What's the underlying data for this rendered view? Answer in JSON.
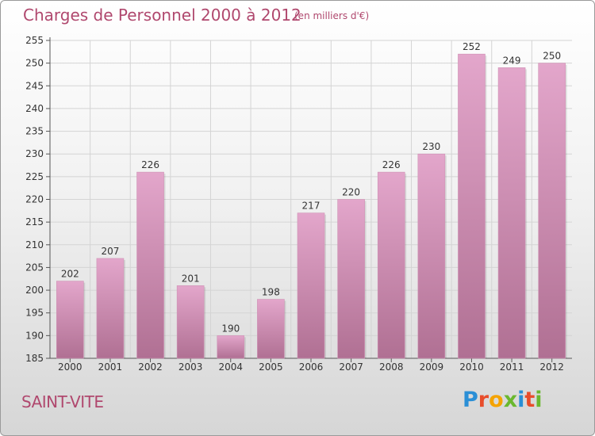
{
  "header": {
    "title": "Charges de Personnel 2000 à 2012",
    "subtitle": "(en milliers d'€)"
  },
  "footer": {
    "town": "SAINT-VITE",
    "logo_text": "Proxiti"
  },
  "colors": {
    "bar_top": "#e3a6cb",
    "bar_bottom": "#b07093",
    "text_accent": "#b0486e",
    "grid": "#d4d4d4",
    "logo_letters": [
      "#2a8fd6",
      "#e84d2b",
      "#f5a300",
      "#6ab82e",
      "#2a8fd6",
      "#e84d2b",
      "#6ab82e"
    ]
  },
  "chart_data": {
    "type": "bar",
    "categories": [
      "2000",
      "2001",
      "2002",
      "2003",
      "2004",
      "2005",
      "2006",
      "2007",
      "2008",
      "2009",
      "2010",
      "2011",
      "2012"
    ],
    "values": [
      202,
      207,
      226,
      201,
      190,
      198,
      217,
      220,
      226,
      230,
      252,
      249,
      250
    ],
    "title": "Charges de Personnel 2000 à 2012",
    "subtitle": "(en milliers d'€)",
    "xlabel": "",
    "ylabel": "",
    "ylim": [
      185,
      255
    ],
    "yticks": [
      185,
      190,
      195,
      200,
      205,
      210,
      215,
      220,
      225,
      230,
      235,
      240,
      245,
      250,
      255
    ],
    "grid": true,
    "data_labels": true
  }
}
